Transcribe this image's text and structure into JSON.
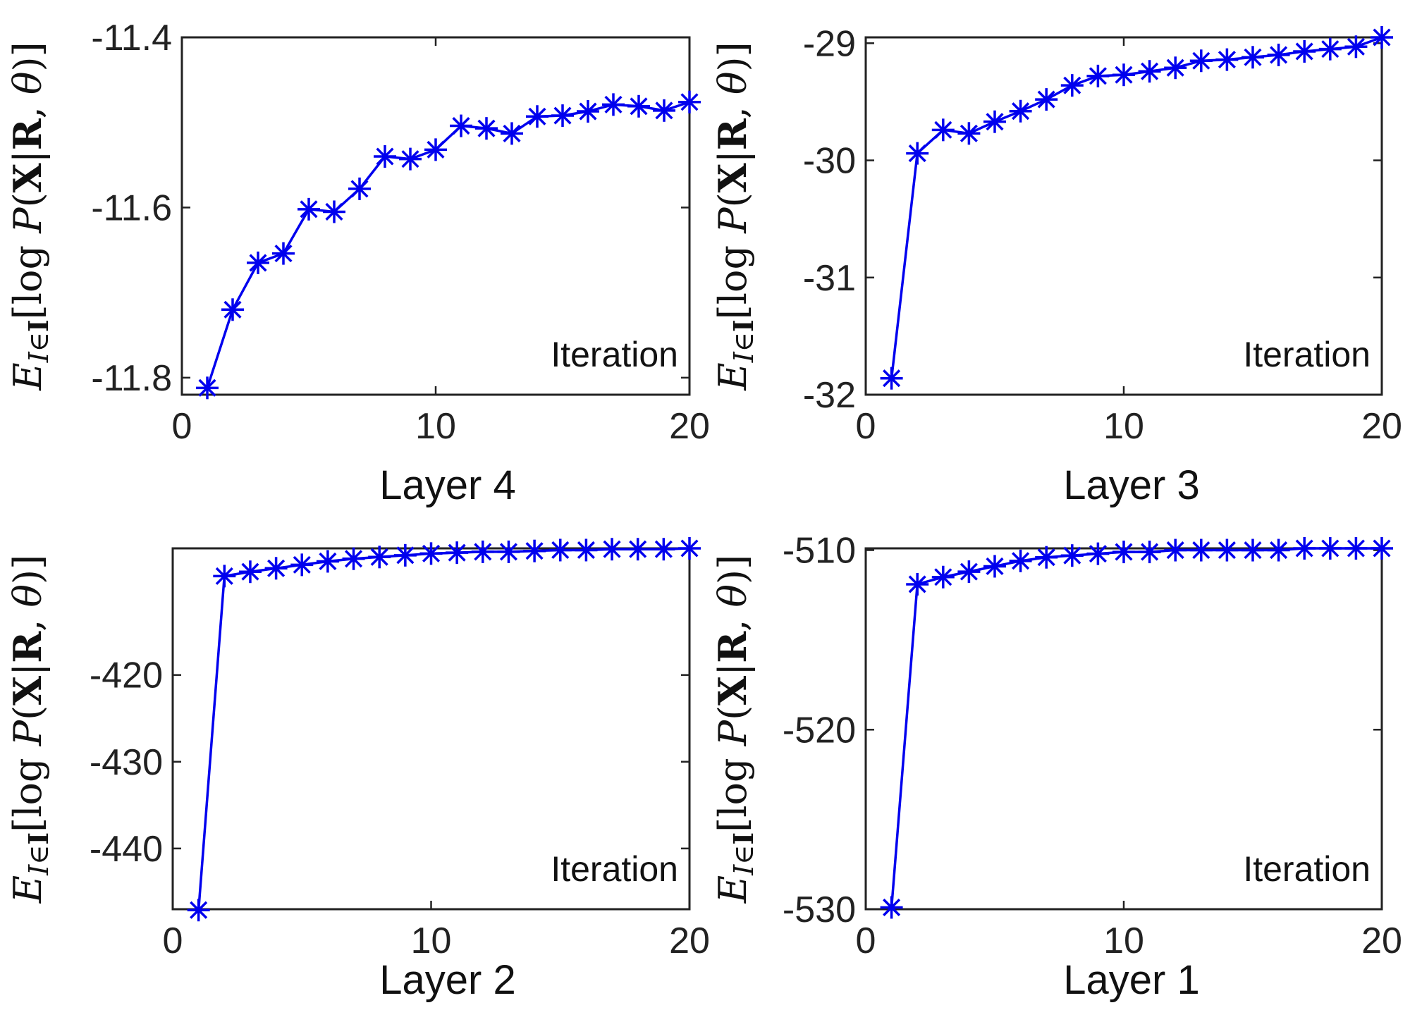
{
  "chart_data": [
    {
      "type": "line",
      "panel": "Layer 4",
      "xlabel": "Layer 4",
      "inner_label": "Iteration",
      "ylabel": "E_{I∈I}[log P(X|R, θ)]",
      "xlim": [
        0,
        20
      ],
      "ylim": [
        -11.82,
        -11.4
      ],
      "xticks": [
        0,
        10,
        20
      ],
      "yticks": [
        -11.4,
        -11.6,
        -11.8
      ],
      "ytick_labels": [
        "-11.4",
        "-11.6",
        "-11.8"
      ],
      "grid": false,
      "color": "#0000ee",
      "marker": "asterisk",
      "x": [
        1,
        2,
        3,
        4,
        5,
        6,
        7,
        8,
        9,
        10,
        11,
        12,
        13,
        14,
        15,
        16,
        17,
        18,
        19,
        20
      ],
      "y": [
        -11.812,
        -11.72,
        -11.665,
        -11.654,
        -11.602,
        -11.605,
        -11.578,
        -11.54,
        -11.543,
        -11.532,
        -11.504,
        -11.507,
        -11.513,
        -11.493,
        -11.492,
        -11.487,
        -11.479,
        -11.481,
        -11.486,
        -11.476
      ]
    },
    {
      "type": "line",
      "panel": "Layer 3",
      "xlabel": "Layer 3",
      "inner_label": "Iteration",
      "ylabel": "E_{I∈I}[log P(X|R, θ)]",
      "xlim": [
        0,
        20
      ],
      "ylim": [
        -32,
        -28.95
      ],
      "xticks": [
        0,
        10,
        20
      ],
      "yticks": [
        -29,
        -30,
        -31,
        -32
      ],
      "ytick_labels": [
        "-29",
        "-30",
        "-31",
        "-32"
      ],
      "grid": false,
      "color": "#0000ee",
      "marker": "asterisk",
      "x": [
        1,
        2,
        3,
        4,
        5,
        6,
        7,
        8,
        9,
        10,
        11,
        12,
        13,
        14,
        15,
        16,
        17,
        18,
        19,
        20
      ],
      "y": [
        -31.86,
        -29.94,
        -29.74,
        -29.77,
        -29.67,
        -29.58,
        -29.48,
        -29.36,
        -29.28,
        -29.27,
        -29.24,
        -29.21,
        -29.15,
        -29.14,
        -29.12,
        -29.1,
        -29.07,
        -29.05,
        -29.03,
        -28.95
      ]
    },
    {
      "type": "line",
      "panel": "Layer 2",
      "xlabel": "Layer 2",
      "inner_label": "Iteration",
      "ylabel": "E_{I∈I}[log P(X|R, θ)]",
      "xlim": [
        0,
        20
      ],
      "ylim": [
        -447,
        -405.4
      ],
      "xticks": [
        0,
        10,
        20
      ],
      "yticks": [
        -420,
        -430,
        -440
      ],
      "ytick_labels": [
        "-420",
        "-430",
        "-440"
      ],
      "grid": false,
      "color": "#0000ee",
      "marker": "asterisk",
      "x": [
        1,
        2,
        3,
        4,
        5,
        6,
        7,
        8,
        9,
        10,
        11,
        12,
        13,
        14,
        15,
        16,
        17,
        18,
        19,
        20
      ],
      "y": [
        -447.1,
        -408.6,
        -408.1,
        -407.7,
        -407.3,
        -406.9,
        -406.6,
        -406.4,
        -406.2,
        -406.0,
        -405.9,
        -405.8,
        -405.8,
        -405.7,
        -405.6,
        -405.6,
        -405.5,
        -405.5,
        -405.5,
        -405.4
      ]
    },
    {
      "type": "line",
      "panel": "Layer 1",
      "xlabel": "Layer 1",
      "inner_label": "Iteration",
      "ylabel": "E_{I∈I}[log P(X|R, θ)]",
      "xlim": [
        0,
        20
      ],
      "ylim": [
        -530,
        -509.9
      ],
      "xticks": [
        0,
        10,
        20
      ],
      "yticks": [
        -510,
        -520,
        -530
      ],
      "ytick_labels": [
        "-510",
        "-520",
        "-530"
      ],
      "grid": false,
      "color": "#0000ee",
      "marker": "asterisk",
      "x": [
        1,
        2,
        3,
        4,
        5,
        6,
        7,
        8,
        9,
        10,
        11,
        12,
        13,
        14,
        15,
        16,
        17,
        18,
        19,
        20
      ],
      "y": [
        -529.9,
        -511.9,
        -511.5,
        -511.2,
        -510.9,
        -510.6,
        -510.4,
        -510.3,
        -510.2,
        -510.1,
        -510.1,
        -510.0,
        -510.0,
        -510.0,
        -510.0,
        -510.0,
        -509.9,
        -509.9,
        -509.9,
        -509.9
      ]
    }
  ]
}
